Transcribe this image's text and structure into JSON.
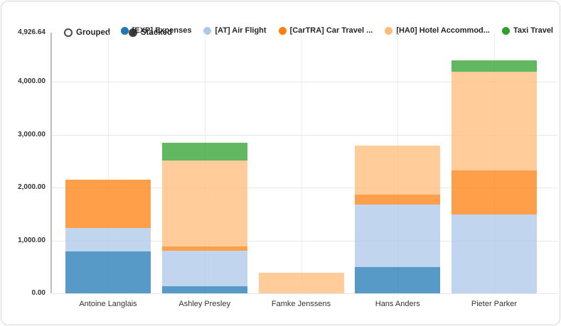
{
  "controls": {
    "options": [
      {
        "label": "Grouped",
        "selected": false
      },
      {
        "label": "Stacked",
        "selected": true
      }
    ]
  },
  "chart_data": {
    "type": "bar",
    "stacked": true,
    "title": "",
    "xlabel": "",
    "ylabel": "",
    "ylim": [
      0,
      4926.64
    ],
    "grid": true,
    "legend_position": "top-right",
    "categories": [
      "Antoine Langlais",
      "Ashley Presley",
      "Famke Jenssens",
      "Hans Anders",
      "Pieter Parker"
    ],
    "series": [
      {
        "name": "[EXP] Expenses",
        "color": "#1f77b4",
        "values": [
          790,
          130,
          0,
          490,
          0
        ]
      },
      {
        "name": "[AT] Air Flight",
        "color": "#aec7e8",
        "values": [
          440,
          680,
          0,
          1190,
          1490
        ]
      },
      {
        "name": "[CarTRA] Car Travel ...",
        "color": "#ff7f0e",
        "values": [
          920,
          70,
          0,
          190,
          830
        ]
      },
      {
        "name": "[HA0] Hotel Accommod...",
        "color": "#ffbb78",
        "values": [
          0,
          1630,
          390,
          920,
          1870
        ]
      },
      {
        "name": "Taxi Travel",
        "color": "#2ca02c",
        "values": [
          0,
          330,
          0,
          0,
          210
        ]
      }
    ],
    "y_ticks": [
      {
        "label": "0.00",
        "value": 0
      },
      {
        "label": "1,000.00",
        "value": 1000
      },
      {
        "label": "2,000.00",
        "value": 2000
      },
      {
        "label": "3,000.00",
        "value": 3000
      },
      {
        "label": "4,000.00",
        "value": 4000
      },
      {
        "label": "4,926.64",
        "value": 4926.64
      }
    ],
    "totals": [
      2150,
      2840,
      390,
      2790,
      4400
    ]
  }
}
